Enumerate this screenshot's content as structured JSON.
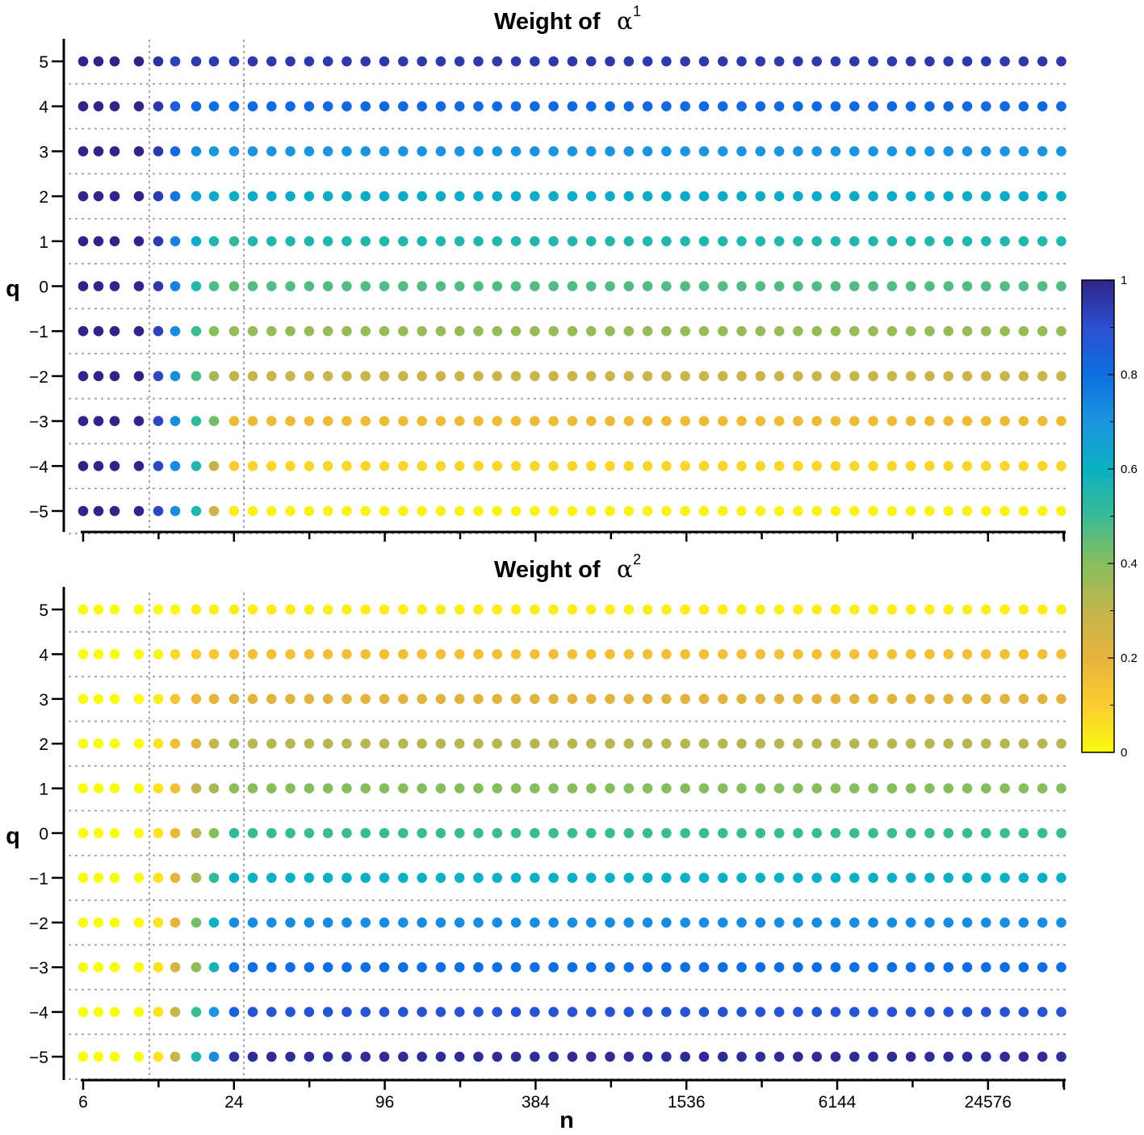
{
  "chart_data": [
    {
      "type": "scatter",
      "title": "Weight of",
      "title_symbol": "α",
      "title_superscript": "1",
      "xlabel": "n",
      "ylabel": "q",
      "ylim": [
        -5,
        5
      ],
      "yticks": [
        "5",
        "4",
        "3",
        "2",
        "1",
        "0",
        "−1",
        "−2",
        "−3",
        "−4",
        "−5"
      ],
      "xscale": "log2",
      "xtick_values": [
        6,
        24,
        96,
        384,
        1536,
        6144,
        24576
      ],
      "q": [
        5,
        4,
        3,
        2,
        1,
        0,
        -1,
        -2,
        -3,
        -4,
        -5
      ],
      "n_points_per_row": 53,
      "grid": "dotted horizontal",
      "weights_by_column_note": "rows ordered q=5..-5; columns 0-5 are transition columns, remaining columns hold steady-state value",
      "transition_columns": [
        [
          1.0,
          1.0,
          1.0,
          1.0,
          1.0,
          1.0,
          1.0,
          1.0,
          1.0,
          1.0,
          1.0
        ],
        [
          1.0,
          1.0,
          1.0,
          1.0,
          1.0,
          1.0,
          1.0,
          1.0,
          1.0,
          1.0,
          1.0
        ],
        [
          1.0,
          1.0,
          1.0,
          1.0,
          1.0,
          1.0,
          1.0,
          1.0,
          1.0,
          1.0,
          1.0
        ],
        [
          1.0,
          1.0,
          1.0,
          1.0,
          1.0,
          1.0,
          1.0,
          1.0,
          1.0,
          1.0,
          1.0
        ],
        [
          0.97,
          0.95,
          0.95,
          0.95,
          0.95,
          0.95,
          0.93,
          0.92,
          0.92,
          0.92,
          0.92
        ],
        [
          0.93,
          0.85,
          0.82,
          0.78,
          0.75,
          0.75,
          0.72,
          0.72,
          0.72,
          0.72,
          0.72
        ],
        [
          0.95,
          0.82,
          0.72,
          0.66,
          0.62,
          0.55,
          0.5,
          0.48,
          0.52,
          0.55,
          0.55
        ],
        [
          0.95,
          0.8,
          0.68,
          0.62,
          0.55,
          0.48,
          0.4,
          0.35,
          0.42,
          0.3,
          0.28
        ],
        [
          0.95,
          0.8,
          0.7,
          0.6,
          0.52,
          0.45,
          0.37,
          0.3,
          0.17,
          0.1,
          0.03
        ]
      ],
      "steady_values": [
        0.95,
        0.82,
        0.7,
        0.62,
        0.55,
        0.47,
        0.37,
        0.28,
        0.17,
        0.08,
        0.02
      ]
    },
    {
      "type": "scatter",
      "title": "Weight of",
      "title_symbol": "α",
      "title_superscript": "2",
      "xlabel": "n",
      "ylabel": "q",
      "ylim": [
        -5,
        5
      ],
      "yticks": [
        "5",
        "4",
        "3",
        "2",
        "1",
        "0",
        "−1",
        "−2",
        "−3",
        "−4",
        "−5"
      ],
      "xscale": "log2",
      "xtick_values": [
        6,
        24,
        96,
        384,
        1536,
        6144,
        24576
      ],
      "q": [
        5,
        4,
        3,
        2,
        1,
        0,
        -1,
        -2,
        -3,
        -4,
        -5
      ],
      "n_points_per_row": 53,
      "grid": "dotted horizontal",
      "transition_columns": [
        [
          0.0,
          0.0,
          0.0,
          0.0,
          0.0,
          0.0,
          0.0,
          0.0,
          0.0,
          0.0,
          0.0
        ],
        [
          0.0,
          0.0,
          0.0,
          0.0,
          0.0,
          0.0,
          0.0,
          0.0,
          0.0,
          0.0,
          0.0
        ],
        [
          0.0,
          0.0,
          0.0,
          0.0,
          0.0,
          0.0,
          0.0,
          0.0,
          0.0,
          0.0,
          0.0
        ],
        [
          0.0,
          0.0,
          0.0,
          0.0,
          0.0,
          0.0,
          0.0,
          0.0,
          0.0,
          0.0,
          0.0
        ],
        [
          0.0,
          0.02,
          0.03,
          0.05,
          0.05,
          0.05,
          0.05,
          0.05,
          0.05,
          0.05,
          0.05
        ],
        [
          0.0,
          0.08,
          0.12,
          0.15,
          0.15,
          0.18,
          0.2,
          0.2,
          0.25,
          0.28,
          0.28
        ],
        [
          0.03,
          0.1,
          0.18,
          0.22,
          0.3,
          0.32,
          0.35,
          0.42,
          0.38,
          0.5,
          0.55
        ],
        [
          0.03,
          0.12,
          0.2,
          0.3,
          0.35,
          0.4,
          0.52,
          0.6,
          0.58,
          0.7,
          0.72
        ],
        [
          0.03,
          0.15,
          0.22,
          0.35,
          0.38,
          0.52,
          0.62,
          0.72,
          0.78,
          0.85,
          0.97
        ]
      ],
      "steady_values": [
        0.03,
        0.15,
        0.22,
        0.32,
        0.4,
        0.5,
        0.6,
        0.72,
        0.8,
        0.88,
        0.98
      ]
    }
  ],
  "colorbar": {
    "min": 0,
    "max": 1,
    "tick_labels": [
      "1",
      "0.8",
      "0.6",
      "0.4",
      "0.2",
      "0"
    ],
    "tick_values": [
      1,
      0.8,
      0.6,
      0.4,
      0.2,
      0
    ],
    "colormap": "parula-reversed",
    "colors": [
      "#f9fb0e",
      "#fbcc31",
      "#e7b43b",
      "#c3b54e",
      "#86be5e",
      "#3bbb95",
      "#0bb0c2",
      "#1b95df",
      "#0d6fe0",
      "#2c4fd0",
      "#2f2588"
    ]
  },
  "x_axis_labels": [
    "6",
    "24",
    "96",
    "384",
    "1536",
    "6144",
    "24576"
  ]
}
